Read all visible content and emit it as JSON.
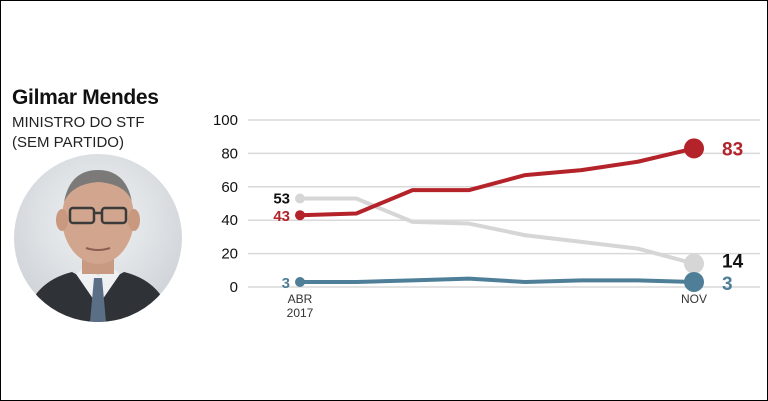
{
  "person": {
    "name": "Gilmar Mendes",
    "role_line1": "MINISTRO DO STF",
    "role_line2": "(SEM PARTIDO)"
  },
  "colors": {
    "red": "#b4232a",
    "gray": "#d6d6d6",
    "blue": "#4f7e98",
    "grid": "#d9d9d9",
    "text": "#111111"
  },
  "chart_data": {
    "type": "line",
    "title": "",
    "xlabel": "",
    "ylabel": "",
    "ylim": [
      0,
      100
    ],
    "yticks": [
      "100",
      "80",
      "60",
      "40",
      "20",
      "0"
    ],
    "x_labels": {
      "start_line1": "ABR",
      "start_line2": "2017",
      "end": "NOV"
    },
    "x": [
      0,
      1,
      2,
      3,
      4,
      5,
      6,
      7
    ],
    "series": [
      {
        "name": "red",
        "color": "#b4232a",
        "values": [
          43,
          44,
          58,
          58,
          67,
          70,
          75,
          83
        ],
        "start_label": "43",
        "end_label": "83"
      },
      {
        "name": "gray",
        "color": "#d6d6d6",
        "values": [
          53,
          53,
          39,
          38,
          31,
          27,
          23,
          14
        ],
        "start_label": "53",
        "end_label": "14"
      },
      {
        "name": "blue",
        "color": "#4f7e98",
        "values": [
          3,
          3,
          4,
          5,
          3,
          4,
          4,
          3
        ],
        "start_label": "3",
        "end_label": "3"
      }
    ]
  }
}
